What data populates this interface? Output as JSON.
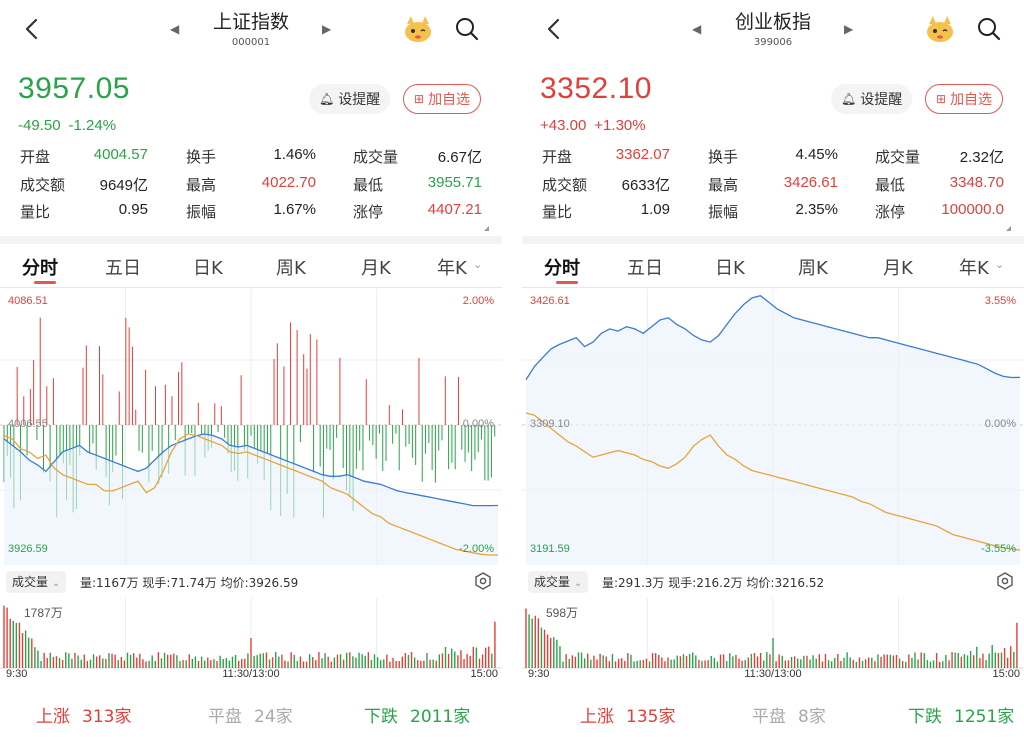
{
  "colors": {
    "up": "#e0403a",
    "down": "#29a347",
    "flat": "#aaaaaa",
    "line_price": "#3a7bd5",
    "line_avg": "#e8a33a"
  },
  "panels": [
    {
      "title": "上证指数",
      "code": "000001",
      "price": "3957.05",
      "direction": "down",
      "change": "-49.50",
      "change_pct": "-1.24%",
      "alert_label": "设提醒",
      "add_label": "加自选",
      "stats": [
        [
          {
            "label": "开盘",
            "value": "4004.57",
            "color": "down"
          },
          {
            "label": "换手",
            "value": "1.46%",
            "color": "flat"
          },
          {
            "label": "成交量",
            "value": "6.67亿",
            "color": "flat"
          }
        ],
        [
          {
            "label": "成交额",
            "value": "9649亿",
            "color": "flat"
          },
          {
            "label": "最高",
            "value": "4022.70",
            "color": "up"
          },
          {
            "label": "最低",
            "value": "3955.71",
            "color": "down"
          }
        ],
        [
          {
            "label": "量比",
            "value": "0.95",
            "color": "flat"
          },
          {
            "label": "振幅",
            "value": "1.67%",
            "color": "flat"
          },
          {
            "label": "涨停",
            "value": "4407.21",
            "color": "up"
          }
        ]
      ],
      "tabs": [
        "分时",
        "五日",
        "日K",
        "周K",
        "月K",
        "年K"
      ],
      "axis": {
        "top_left": "4086.51",
        "top_right": "2.00%",
        "mid_left": "4006.55",
        "mid_right": "0.00%",
        "bottom_left": "3926.59",
        "bottom_right": "-2.00%"
      },
      "vol_selector": "成交量",
      "vol_info": "量:1167万  现手:71.74万  均价:3926.59",
      "vol_max": "1787万",
      "time_labels": [
        "9:30",
        "11:30/13:00",
        "15:00"
      ],
      "footer": {
        "up_label": "上涨",
        "up_count": "313家",
        "flat_label": "平盘",
        "flat_count": "24家",
        "down_label": "下跌",
        "down_count": "2011家"
      },
      "chart_data": {
        "type": "line",
        "price_line": [
          3998,
          3994,
          3990,
          3985,
          3982,
          3978,
          3984,
          3990,
          3992,
          3994,
          3990,
          3988,
          3986,
          3984,
          3982,
          3980,
          3978,
          3980,
          3985,
          3990,
          3994,
          3996,
          3998,
          4000,
          4001,
          4000,
          3998,
          3994,
          3993,
          3994,
          3992,
          3990,
          3988,
          3986,
          3984,
          3982,
          3980,
          3978,
          3976,
          3975,
          3975,
          3976,
          3974,
          3972,
          3971,
          3970,
          3968,
          3966,
          3965,
          3964,
          3963,
          3962,
          3961,
          3960,
          3959,
          3958,
          3957,
          3957,
          3957,
          3957.05
        ],
        "avg_line": [
          4000,
          3998,
          3992,
          3990,
          3986,
          3988,
          3980,
          3976,
          3974,
          3972,
          3970,
          3970,
          3966,
          3966,
          3968,
          3970,
          3972,
          3965,
          3968,
          3978,
          3990,
          3998,
          4001,
          4000,
          3998,
          3996,
          3994,
          3990,
          3989,
          3990,
          3988,
          3986,
          3984,
          3982,
          3980,
          3978,
          3976,
          3974,
          3972,
          3968,
          3966,
          3964,
          3960,
          3956,
          3952,
          3950,
          3946,
          3944,
          3942,
          3940,
          3938,
          3936,
          3934,
          3932,
          3930,
          3929,
          3928,
          3927,
          3926.6,
          3926.6
        ],
        "ylim": [
          3926.59,
          4086.51
        ]
      }
    },
    {
      "title": "创业板指",
      "code": "399006",
      "price": "3352.10",
      "direction": "up",
      "change": "+43.00",
      "change_pct": "+1.30%",
      "alert_label": "设提醒",
      "add_label": "加自选",
      "stats": [
        [
          {
            "label": "开盘",
            "value": "3362.07",
            "color": "up"
          },
          {
            "label": "换手",
            "value": "4.45%",
            "color": "flat"
          },
          {
            "label": "成交量",
            "value": "2.32亿",
            "color": "flat"
          }
        ],
        [
          {
            "label": "成交额",
            "value": "6633亿",
            "color": "flat"
          },
          {
            "label": "最高",
            "value": "3426.61",
            "color": "up"
          },
          {
            "label": "最低",
            "value": "3348.70",
            "color": "up"
          }
        ],
        [
          {
            "label": "量比",
            "value": "1.09",
            "color": "flat"
          },
          {
            "label": "振幅",
            "value": "2.35%",
            "color": "flat"
          },
          {
            "label": "涨停",
            "value": "100000.0",
            "color": "up"
          }
        ]
      ],
      "tabs": [
        "分时",
        "五日",
        "日K",
        "周K",
        "月K",
        "年K"
      ],
      "axis": {
        "top_left": "3426.61",
        "top_right": "3.55%",
        "mid_left": "3309.10",
        "mid_right": "0.00%",
        "bottom_left": "3191.59",
        "bottom_right": "-3.55%"
      },
      "vol_selector": "成交量",
      "vol_info": "量:291.3万  现手:216.2万  均价:3216.52",
      "vol_max": "598万",
      "time_labels": [
        "9:30",
        "11:30/13:00",
        "15:00"
      ],
      "footer": {
        "up_label": "上涨",
        "up_count": "135家",
        "flat_label": "平盘",
        "flat_count": "8家",
        "down_label": "下跌",
        "down_count": "1251家"
      },
      "chart_data": {
        "type": "line",
        "price_line": [
          3350,
          3362,
          3370,
          3378,
          3382,
          3385,
          3388,
          3380,
          3384,
          3392,
          3396,
          3394,
          3398,
          3396,
          3392,
          3398,
          3404,
          3406,
          3400,
          3396,
          3390,
          3386,
          3384,
          3390,
          3400,
          3410,
          3418,
          3424,
          3426,
          3420,
          3414,
          3410,
          3406,
          3404,
          3402,
          3400,
          3398,
          3396,
          3394,
          3392,
          3390,
          3388,
          3388,
          3386,
          3384,
          3382,
          3380,
          3378,
          3376,
          3374,
          3372,
          3370,
          3368,
          3366,
          3364,
          3360,
          3356,
          3353,
          3352,
          3352.1
        ],
        "avg_line": [
          3320,
          3318,
          3312,
          3306,
          3300,
          3294,
          3290,
          3285,
          3280,
          3282,
          3284,
          3286,
          3284,
          3282,
          3278,
          3276,
          3272,
          3270,
          3274,
          3280,
          3290,
          3296,
          3300,
          3290,
          3282,
          3278,
          3272,
          3268,
          3266,
          3264,
          3262,
          3260,
          3258,
          3256,
          3254,
          3252,
          3250,
          3248,
          3246,
          3244,
          3240,
          3238,
          3234,
          3230,
          3228,
          3226,
          3224,
          3222,
          3220,
          3218,
          3214,
          3210,
          3208,
          3206,
          3204,
          3202,
          3200,
          3198,
          3197,
          3196
        ],
        "ylim": [
          3191.59,
          3426.61
        ]
      }
    }
  ]
}
